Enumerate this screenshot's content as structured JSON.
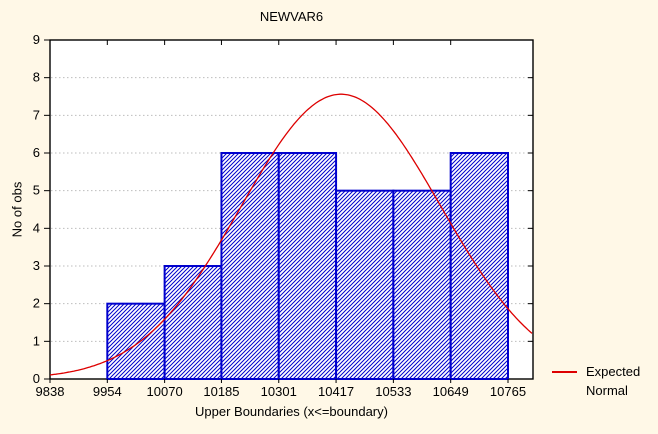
{
  "window": {
    "background_color": "#FFF8E7",
    "plot_background_color": "#FFFFFF"
  },
  "chart_data": {
    "type": "bar",
    "subtype": "histogram-with-normal-curve",
    "title": "NEWVAR6",
    "xlabel": "Upper Boundaries (x<=boundary)",
    "ylabel": "No of obs",
    "x_tick_labels": [
      "9838",
      "9954",
      "10070",
      "10185",
      "10301",
      "10417",
      "10533",
      "10649",
      "10765"
    ],
    "x_tick_values": [
      9838,
      9954,
      10070,
      10185,
      10301,
      10417,
      10533,
      10649,
      10765
    ],
    "y_ticks": [
      0,
      1,
      2,
      3,
      4,
      5,
      6,
      7,
      8,
      9
    ],
    "ylim": [
      0,
      9
    ],
    "grid": "horizontal-dotted",
    "bin_width": 116,
    "categories": [
      "10070",
      "10185",
      "10301",
      "10417",
      "10533",
      "10649",
      "10765"
    ],
    "values": [
      2,
      3,
      6,
      6,
      5,
      5,
      6
    ],
    "bins": [
      {
        "lower": 9954,
        "upper": 10070,
        "count": 2
      },
      {
        "lower": 10070,
        "upper": 10185,
        "count": 3
      },
      {
        "lower": 10185,
        "upper": 10301,
        "count": 6
      },
      {
        "lower": 10301,
        "upper": 10417,
        "count": 6
      },
      {
        "lower": 10417,
        "upper": 10533,
        "count": 5
      },
      {
        "lower": 10533,
        "upper": 10649,
        "count": 5
      },
      {
        "lower": 10649,
        "upper": 10765,
        "count": 6
      }
    ],
    "n_total": 33,
    "normal_curve": {
      "name": "Expected Normal",
      "mean": 10427,
      "sd": 202,
      "peak_value": 7.56,
      "color": "#DD0000"
    },
    "legend": {
      "position": "bottom-right",
      "label": "Expected Normal",
      "lines": [
        "Expected",
        "Normal"
      ]
    },
    "colors": {
      "bar_border": "#0000CD",
      "bar_hatch": "#0000CD",
      "bar_fill": "#FFFFFF",
      "curve": "#DD0000",
      "grid": "#BDBDBD",
      "axis": "#000000",
      "text": "#000000"
    }
  }
}
